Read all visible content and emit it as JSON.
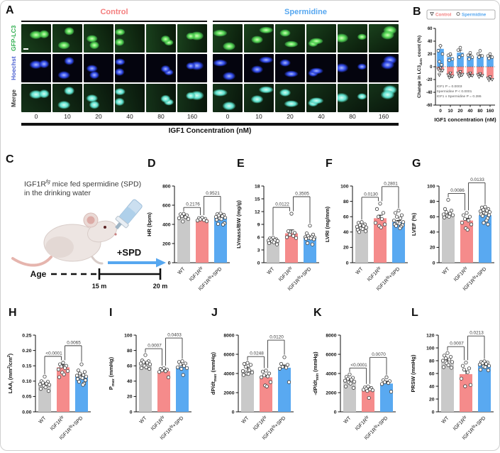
{
  "panelA": {
    "label": "A",
    "group_headers": [
      {
        "text": "Control",
        "color": "#F47E7E"
      },
      {
        "text": "Spermidine",
        "color": "#56A7F0"
      }
    ],
    "row_labels": [
      {
        "text": "GFP-LC3",
        "color": "#2EAE4E"
      },
      {
        "text": "Hoechst",
        "color": "#4A5FD0"
      },
      {
        "text": "Merge",
        "color": "#3a3a3a"
      }
    ],
    "col_labels": [
      "0",
      "10",
      "20",
      "40",
      "80",
      "160",
      "0",
      "10",
      "20",
      "40",
      "80",
      "160"
    ],
    "axis_title": "IGF1 Concentration (nM)"
  },
  "panelC": {
    "label": "C",
    "caption_line1": "IGF1R^{fg} mice fed spermidine (SPD)",
    "caption_line2": "in the drinking water",
    "arrow_label": "+SPD",
    "age_label": "Age",
    "tick_start": "15 m",
    "tick_end": "20 m",
    "arrow_color": "#56A7F0"
  },
  "colors": {
    "wt": "#C9C9C9",
    "tg": "#F58B8B",
    "spd": "#59A9F1",
    "point_stroke": "#3A3A3A"
  },
  "chart_data": [
    {
      "id": "B",
      "panel_label": "B",
      "type": "bar",
      "categories": [
        "0",
        "10",
        "20",
        "40",
        "80",
        "160"
      ],
      "xlabel": "IGF1 concentration (nM)",
      "ylabel": "Change in LC3_{dots} count (%)",
      "ylim": [
        -60,
        60
      ],
      "yticks": [
        -60,
        -40,
        -20,
        0,
        20,
        40,
        60
      ],
      "legend": [
        {
          "label": "Control",
          "marker": "triangle-down",
          "color": "#F47E7E"
        },
        {
          "label": "Spermidine",
          "marker": "circle",
          "color": "#56A7F0"
        }
      ],
      "series": [
        {
          "name": "Spermidine",
          "color": "#59A9F1",
          "values": [
            28,
            15,
            22,
            16,
            16,
            15
          ],
          "errors": [
            5,
            3,
            4,
            3,
            3,
            2
          ],
          "points": [
            [
              33,
              25,
              20,
              8,
              3
            ],
            [
              20,
              18,
              12,
              10
            ],
            [
              30,
              26,
              18,
              15
            ],
            [
              22,
              18,
              15,
              12
            ],
            [
              25,
              20,
              17,
              15
            ],
            [
              20,
              17,
              15,
              13
            ]
          ]
        },
        {
          "name": "Control",
          "color": "#F58B8B",
          "values": [
            -5,
            -13,
            -11,
            -13,
            -13,
            -18
          ],
          "errors": [
            3,
            4,
            4,
            2,
            2,
            2
          ],
          "points": [
            [
              -2,
              -4,
              -6,
              -13
            ],
            [
              -10,
              -13,
              -15,
              -17
            ],
            [
              -8,
              -10,
              -12,
              -15
            ],
            [
              -10,
              -12,
              -14,
              -15
            ],
            [
              -11,
              -13,
              -14,
              -16
            ],
            [
              -16,
              -18,
              -20,
              -21
            ]
          ]
        }
      ],
      "annotations": [
        "IGF1 P = 0.0003",
        "Spermidine P < 0.0001",
        "IGF1 x Spermidine P = 0.286"
      ]
    },
    {
      "id": "D",
      "panel_label": "D",
      "type": "bar",
      "ylabel": "HR (bpm)",
      "ylim": [
        0,
        800
      ],
      "yticks": [
        0,
        200,
        400,
        600,
        800
      ],
      "ydec": 0,
      "categories": [
        "WT",
        "IGF1R^{fg}",
        "IGF1R^{fg}+SPD"
      ],
      "values": [
        480,
        450,
        468
      ],
      "errors": [
        18,
        12,
        14
      ],
      "points": [
        [
          510,
          505,
          495,
          485,
          475,
          465,
          455,
          430
        ],
        [
          470,
          465,
          458,
          452,
          446,
          440,
          432
        ],
        [
          515,
          508,
          500,
          492,
          486,
          478,
          470,
          462,
          455,
          448,
          412,
          405,
          398
        ]
      ],
      "pvalues": [
        "0.2176",
        "0.9521"
      ]
    },
    {
      "id": "E",
      "panel_label": "E",
      "type": "bar",
      "ylabel": "LVmass/BW (mg/g)",
      "ylim": [
        0,
        18
      ],
      "yticks": [
        0,
        3,
        6,
        9,
        12,
        15,
        18
      ],
      "ydec": 0,
      "categories": [
        "WT",
        "IGF1R^{fg}",
        "IGF1R^{fg}+SPD"
      ],
      "values": [
        5.2,
        6.9,
        5.8
      ],
      "errors": [
        0.25,
        0.8,
        0.35
      ],
      "points": [
        [
          5.9,
          5.7,
          5.5,
          5.4,
          5.3,
          5.2,
          5.1,
          5.0,
          4.8,
          4.6,
          4.3
        ],
        [
          11.5,
          7.4,
          7.0,
          6.6,
          6.3,
          6.0,
          5.8
        ],
        [
          8.7,
          6.9,
          6.6,
          6.3,
          6.1,
          6.0,
          5.9,
          5.8,
          5.7,
          5.6,
          5.5,
          4.6,
          4.3
        ]
      ],
      "pvalues": [
        "0.0122",
        "0.3505"
      ]
    },
    {
      "id": "F",
      "panel_label": "F",
      "type": "bar",
      "ylabel": "LVRI (mg/mm)",
      "ylim": [
        0,
        100
      ],
      "yticks": [
        0,
        20,
        40,
        60,
        80,
        100
      ],
      "ydec": 0,
      "categories": [
        "WT",
        "IGF1R^{fg}",
        "IGF1R^{fg}+SPD"
      ],
      "values": [
        47,
        58,
        53
      ],
      "errors": [
        1.5,
        4,
        2
      ],
      "points": [
        [
          53,
          52,
          50,
          49,
          48,
          47,
          46,
          45,
          44,
          43,
          41,
          40
        ],
        [
          77,
          70,
          65,
          60,
          57,
          52,
          50,
          48,
          46
        ],
        [
          68,
          65,
          62,
          60,
          58,
          55,
          53,
          52,
          51,
          50,
          49,
          48,
          47,
          45
        ]
      ],
      "pvalues": [
        "0.0130",
        "0.2801"
      ]
    },
    {
      "id": "G",
      "panel_label": "G",
      "type": "bar",
      "ylabel": "LVEF (%)",
      "ylim": [
        0,
        100
      ],
      "yticks": [
        0,
        20,
        40,
        60,
        80,
        100
      ],
      "ydec": 0,
      "categories": [
        "WT",
        "IGF1R^{fg}",
        "IGF1R^{fg}+SPD"
      ],
      "values": [
        63,
        55,
        62
      ],
      "errors": [
        2,
        3,
        1.5
      ],
      "points": [
        [
          82,
          70,
          68,
          66,
          64,
          63,
          62,
          61,
          60,
          59
        ],
        [
          65,
          62,
          60,
          57,
          55,
          52,
          50,
          45,
          43
        ],
        [
          73,
          72,
          70,
          69,
          68,
          67,
          66,
          65,
          64,
          63,
          62,
          61,
          58,
          55,
          52,
          50
        ]
      ],
      "pvalues": [
        "0.0086",
        "0.0133"
      ]
    },
    {
      "id": "H",
      "panel_label": "H",
      "type": "bar",
      "ylabel": "LAA_{i} (mm^{2}/cm^{2})",
      "ylim": [
        0,
        0.25
      ],
      "yticks": [
        0,
        0.05,
        0.1,
        0.15,
        0.2,
        0.25
      ],
      "ydec": 2,
      "categories": [
        "WT",
        "IGF1R^{fg}",
        "IGF1R^{fg}+SPD"
      ],
      "values": [
        0.09,
        0.145,
        0.115
      ],
      "errors": [
        0.005,
        0.008,
        0.006
      ],
      "points": [
        [
          0.115,
          0.1,
          0.098,
          0.095,
          0.092,
          0.09,
          0.088,
          0.085,
          0.08,
          0.075,
          0.068
        ],
        [
          0.16,
          0.155,
          0.15,
          0.148,
          0.143,
          0.138,
          0.133,
          0.128,
          0.122,
          0.113
        ],
        [
          0.155,
          0.135,
          0.13,
          0.125,
          0.12,
          0.118,
          0.115,
          0.112,
          0.11,
          0.107,
          0.103,
          0.098,
          0.092,
          0.088
        ]
      ],
      "pvalues": [
        "<0.0001",
        "0.0065"
      ]
    },
    {
      "id": "I",
      "panel_label": "I",
      "type": "bar",
      "ylabel": "P_{max} (mmHg)",
      "ylim": [
        0,
        100
      ],
      "yticks": [
        0,
        20,
        40,
        60,
        80,
        100
      ],
      "ydec": 0,
      "categories": [
        "WT",
        "IGF1R^{fg}",
        "IGF1R^{fg}+SPD"
      ],
      "values": [
        62,
        53,
        59
      ],
      "errors": [
        2,
        1.5,
        2.5
      ],
      "points": [
        [
          74,
          67,
          66,
          65,
          64,
          63,
          62,
          60,
          58,
          57,
          56
        ],
        [
          57,
          56,
          55,
          54,
          53,
          52,
          45
        ],
        [
          66,
          65,
          63,
          62,
          60,
          58,
          57,
          56,
          48
        ]
      ],
      "pvalues": [
        "0.0007",
        "0.0403"
      ]
    },
    {
      "id": "J",
      "panel_label": "J",
      "type": "bar",
      "ylabel": "dP/dt_{max} (mmHg)",
      "ylim": [
        0,
        8000
      ],
      "yticks": [
        0,
        2000,
        4000,
        6000,
        8000
      ],
      "ydec": 0,
      "categories": [
        "WT",
        "IGF1R^{fg}",
        "IGF1R^{fg}+SPD"
      ],
      "values": [
        4400,
        3600,
        4600
      ],
      "errors": [
        250,
        220,
        280
      ],
      "points": [
        [
          5100,
          5000,
          4900,
          4700,
          4350,
          4250,
          4100,
          4000,
          3950,
          3850
        ],
        [
          4300,
          4200,
          4000,
          3800,
          3700,
          3600,
          3100,
          2750,
          2650
        ],
        [
          5700,
          5000,
          4900,
          4700,
          4600,
          4500,
          3100
        ]
      ],
      "pvalues": [
        "0.0248",
        "0.0120"
      ]
    },
    {
      "id": "K",
      "panel_label": "K",
      "type": "bar",
      "ylabel": "-dP/dt_{min} (mmHg)",
      "ylim": [
        0,
        8000
      ],
      "yticks": [
        0,
        2000,
        4000,
        6000,
        8000
      ],
      "ydec": 0,
      "categories": [
        "WT",
        "IGF1R^{fg}",
        "IGF1R^{fg}+SPD"
      ],
      "values": [
        3200,
        2250,
        2950
      ],
      "errors": [
        200,
        140,
        240
      ],
      "points": [
        [
          3900,
          3650,
          3550,
          3450,
          3350,
          3250,
          3150,
          3050,
          2950,
          2650,
          2500
        ],
        [
          2650,
          2550,
          2480,
          2420,
          2350,
          2300,
          2250,
          2180,
          1450
        ],
        [
          3600,
          3300,
          3200,
          3100,
          3000,
          2900,
          2100
        ]
      ],
      "pvalues": [
        "<0.0001",
        "0.0070"
      ]
    },
    {
      "id": "L",
      "panel_label": "L",
      "type": "bar",
      "ylabel": "PRSW (mmHg)",
      "ylim": [
        0,
        120
      ],
      "yticks": [
        0,
        20,
        40,
        60,
        80,
        100,
        120
      ],
      "ydec": 0,
      "categories": [
        "WT",
        "IGF1R^{fg}",
        "IGF1R^{fg}+SPD"
      ],
      "values": [
        78,
        59,
        73
      ],
      "errors": [
        3,
        5,
        2.5
      ],
      "points": [
        [
          92,
          88,
          86,
          84,
          82,
          80,
          78,
          76,
          73,
          70,
          69
        ],
        [
          77,
          72,
          68,
          66,
          62,
          52,
          42,
          40
        ],
        [
          79,
          78,
          77,
          76,
          75,
          74,
          72,
          71,
          70,
          66,
          65
        ]
      ],
      "pvalues": [
        "0.0007",
        "0.0213"
      ]
    }
  ]
}
